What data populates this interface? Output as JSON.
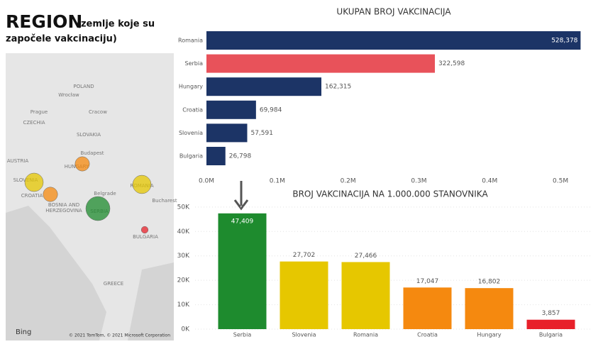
{
  "header": {
    "title": "REGION",
    "subtitle_line1": "(zemlje koje su",
    "subtitle_line2": "započele vakcinaciju)"
  },
  "map": {
    "labels": [
      "POLAND",
      "Wrocław",
      "Prague",
      "Cracow",
      "CZECHIA",
      "SLOVAKIA",
      "Budapest",
      "HUNGARY",
      "AUSTRIA",
      "SLOVENIA",
      "CROATIA",
      "BOSNIA AND",
      "HERZEGOVINA",
      "Belgrade",
      "SERBIA",
      "ROMANIA",
      "Bucharest",
      "BULGARIA",
      "GREECE"
    ],
    "logo": "Bing",
    "attribution": "© 2021 TomTom, © 2021 Microsoft Corporation"
  },
  "chart_data": [
    {
      "type": "hbar",
      "title": "UKUPAN BROJ VAKCINACIJA",
      "categories": [
        "Romania",
        "Serbia",
        "Hungary",
        "Croatia",
        "Slovenia",
        "Bulgaria"
      ],
      "values": [
        528378,
        322598,
        162315,
        69984,
        57591,
        26798
      ],
      "value_labels": [
        "528,378",
        "322,598",
        "162,315",
        "69,984",
        "57,591",
        "26,798"
      ],
      "colors": [
        "#1c3466",
        "#e8525a",
        "#1c3466",
        "#1c3466",
        "#1c3466",
        "#1c3466"
      ],
      "xlim": [
        0,
        545000
      ],
      "xticks": [
        {
          "value": 0,
          "label": "0.0M"
        },
        {
          "value": 100000,
          "label": "0.1M"
        },
        {
          "value": 200000,
          "label": "0.2M"
        },
        {
          "value": 300000,
          "label": "0.3M"
        },
        {
          "value": 400000,
          "label": "0.4M"
        },
        {
          "value": 500000,
          "label": "0.5M"
        }
      ],
      "grid": false
    },
    {
      "type": "bar",
      "title": "BROJ VAKCINACIJA NA 1.000.000 STANOVNIKA",
      "categories": [
        "Serbia",
        "Slovenia",
        "Romania",
        "Croatia",
        "Hungary",
        "Bulgaria"
      ],
      "values": [
        47409,
        27702,
        27466,
        17047,
        16802,
        3857
      ],
      "value_labels": [
        "47,409",
        "27,702",
        "27,466",
        "17,047",
        "16,802",
        "3,857"
      ],
      "colors": [
        "#1e8b2e",
        "#e6c700",
        "#e6c700",
        "#f5890f",
        "#f5890f",
        "#e8202a"
      ],
      "ylim": [
        0,
        52000
      ],
      "yticks": [
        {
          "value": 0,
          "label": "0K"
        },
        {
          "value": 10000,
          "label": "10K"
        },
        {
          "value": 20000,
          "label": "20K"
        },
        {
          "value": 30000,
          "label": "30K"
        },
        {
          "value": 40000,
          "label": "40K"
        },
        {
          "value": 50000,
          "label": "50K"
        }
      ],
      "grid": true
    }
  ]
}
